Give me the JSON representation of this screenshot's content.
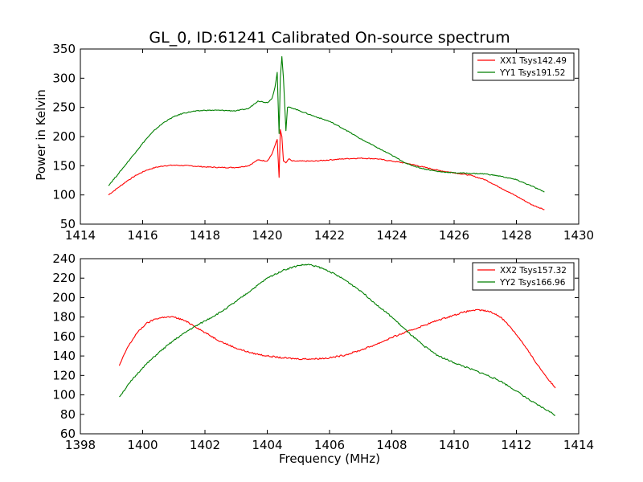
{
  "chart_data": [
    {
      "type": "line",
      "title": "GL_0, ID:61241 Calibrated On-source spectrum",
      "xlabel": "",
      "ylabel": "Power in Kelvin",
      "xlim": [
        1414,
        1430
      ],
      "ylim": [
        50,
        350
      ],
      "xticks": [
        1414,
        1416,
        1418,
        1420,
        1422,
        1424,
        1426,
        1428,
        1430
      ],
      "yticks": [
        50,
        100,
        150,
        200,
        250,
        300,
        350
      ],
      "grid": false,
      "legend_position": "top-right",
      "series": [
        {
          "name": "XX1 Tsys142.49",
          "color": "#ff0000",
          "x": [
            1414.9,
            1415.2,
            1415.5,
            1415.8,
            1416.1,
            1416.4,
            1416.7,
            1417.0,
            1417.5,
            1418.0,
            1418.5,
            1419.0,
            1419.4,
            1419.7,
            1420.0,
            1420.15,
            1420.25,
            1420.32,
            1420.38,
            1420.42,
            1420.47,
            1420.52,
            1420.6,
            1420.7,
            1420.8,
            1421.0,
            1421.5,
            1422.0,
            1422.5,
            1423.0,
            1423.5,
            1424.0,
            1424.5,
            1425.0,
            1425.5,
            1426.0,
            1426.5,
            1427.0,
            1427.5,
            1428.0,
            1428.5,
            1428.9
          ],
          "y": [
            100,
            112,
            124,
            134,
            142,
            147,
            150,
            151,
            150,
            148,
            147,
            147,
            150,
            160,
            158,
            170,
            185,
            195,
            130,
            212,
            200,
            158,
            155,
            162,
            158,
            158,
            158,
            160,
            162,
            163,
            162,
            158,
            154,
            148,
            142,
            138,
            134,
            126,
            112,
            98,
            83,
            75
          ]
        },
        {
          "name": "YY1 Tsys191.52",
          "color": "#007f00",
          "x": [
            1414.9,
            1415.2,
            1415.5,
            1415.8,
            1416.1,
            1416.4,
            1416.7,
            1417.0,
            1417.3,
            1417.6,
            1418.0,
            1418.5,
            1419.0,
            1419.4,
            1419.7,
            1420.0,
            1420.15,
            1420.25,
            1420.32,
            1420.38,
            1420.42,
            1420.47,
            1420.52,
            1420.6,
            1420.65,
            1420.75,
            1421.0,
            1421.5,
            1422.0,
            1422.5,
            1423.0,
            1423.5,
            1424.0,
            1424.5,
            1425.0,
            1425.5,
            1426.0,
            1426.5,
            1427.0,
            1427.5,
            1428.0,
            1428.5,
            1428.9
          ],
          "y": [
            116,
            135,
            155,
            175,
            195,
            212,
            225,
            234,
            240,
            243,
            245,
            245,
            244,
            248,
            261,
            258,
            265,
            285,
            310,
            205,
            300,
            337,
            300,
            210,
            250,
            250,
            245,
            235,
            226,
            212,
            196,
            182,
            168,
            153,
            145,
            140,
            138,
            137,
            136,
            132,
            126,
            115,
            105
          ]
        }
      ]
    },
    {
      "type": "line",
      "title": "",
      "xlabel": "Frequency (MHz)",
      "ylabel": "",
      "xlim": [
        1398,
        1414
      ],
      "ylim": [
        60,
        240
      ],
      "xticks": [
        1398,
        1400,
        1402,
        1404,
        1406,
        1408,
        1410,
        1412,
        1414
      ],
      "yticks": [
        60,
        80,
        100,
        120,
        140,
        160,
        180,
        200,
        220,
        240
      ],
      "grid": false,
      "legend_position": "top-right",
      "series": [
        {
          "name": "XX2 Tsys157.32",
          "color": "#ff0000",
          "x": [
            1399.25,
            1399.5,
            1399.8,
            1400.1,
            1400.4,
            1400.7,
            1401.0,
            1401.3,
            1401.6,
            1402.0,
            1402.5,
            1403.0,
            1403.5,
            1404.0,
            1404.5,
            1405.0,
            1405.5,
            1406.0,
            1406.5,
            1407.0,
            1407.5,
            1408.0,
            1408.5,
            1409.0,
            1409.5,
            1410.0,
            1410.3,
            1410.6,
            1410.9,
            1411.2,
            1411.5,
            1411.8,
            1412.1,
            1412.4,
            1412.7,
            1413.0,
            1413.25
          ],
          "y": [
            130,
            148,
            163,
            173,
            178,
            180,
            180,
            177,
            172,
            164,
            155,
            148,
            143,
            140,
            138,
            137,
            137,
            138,
            141,
            146,
            152,
            159,
            165,
            171,
            177,
            182,
            185,
            187,
            187,
            185,
            180,
            170,
            158,
            144,
            130,
            117,
            107
          ]
        },
        {
          "name": "YY2 Tsys166.96",
          "color": "#007f00",
          "x": [
            1399.25,
            1399.6,
            1400.0,
            1400.5,
            1401.0,
            1401.5,
            1402.0,
            1402.5,
            1403.0,
            1403.5,
            1404.0,
            1404.5,
            1405.0,
            1405.3,
            1405.6,
            1406.0,
            1406.5,
            1407.0,
            1407.5,
            1408.0,
            1408.5,
            1409.0,
            1409.5,
            1410.0,
            1410.5,
            1411.0,
            1411.5,
            1412.0,
            1412.5,
            1413.0,
            1413.25
          ],
          "y": [
            98,
            113,
            128,
            143,
            156,
            167,
            176,
            185,
            196,
            208,
            220,
            228,
            233,
            234,
            232,
            227,
            218,
            207,
            193,
            180,
            165,
            151,
            140,
            133,
            127,
            121,
            114,
            104,
            93,
            84,
            79
          ]
        }
      ]
    }
  ]
}
